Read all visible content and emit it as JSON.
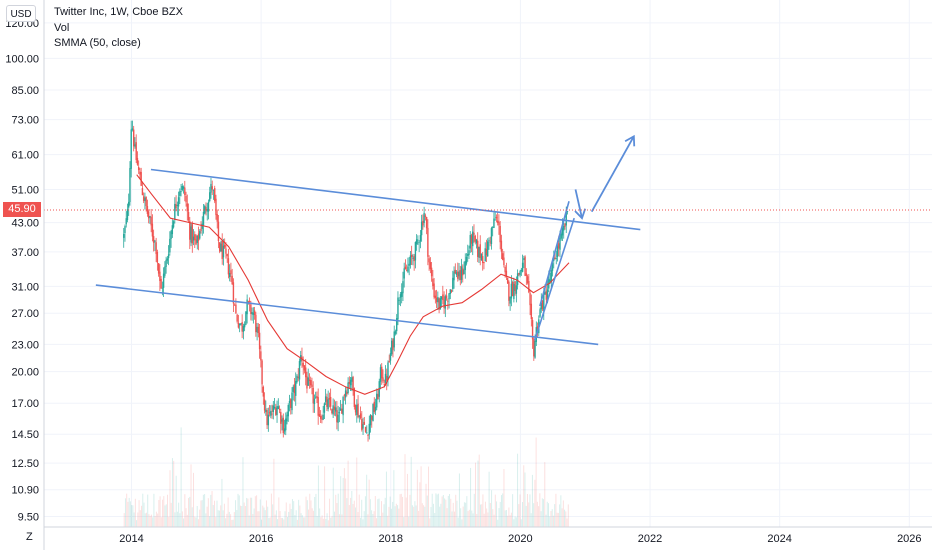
{
  "header": {
    "currency": "USD",
    "legend": {
      "symbol": "Twitter Inc, 1W, Cboe BZX",
      "volume": "Vol",
      "indicator": "SMMA (50, close)"
    },
    "axis_corner": "Z"
  },
  "chart_data": {
    "type": "candlestick",
    "title": "Twitter Inc, 1W, Cboe BZX",
    "y_axis": {
      "scale": "log",
      "side": "left",
      "ticks": [
        "120.00",
        "100.00",
        "85.00",
        "73.00",
        "61.00",
        "51.00",
        "43.00",
        "37.00",
        "31.00",
        "27.00",
        "23.00",
        "20.00",
        "17.00",
        "14.50",
        "12.50",
        "10.90",
        "9.50"
      ],
      "range": [
        9.0,
        135
      ]
    },
    "x_axis": {
      "ticks": [
        "2014",
        "2016",
        "2018",
        "2020",
        "2022",
        "2024",
        "2026"
      ],
      "range": [
        2012.65,
        2026.35
      ]
    },
    "current_price": {
      "label": "45.90",
      "value": 45.9,
      "color": "#ef5350"
    },
    "price_path": [
      [
        2013.88,
        40
      ],
      [
        2013.95,
        46
      ],
      [
        2014.0,
        74
      ],
      [
        2014.05,
        62
      ],
      [
        2014.12,
        55
      ],
      [
        2014.2,
        48
      ],
      [
        2014.3,
        42
      ],
      [
        2014.38,
        38
      ],
      [
        2014.45,
        30
      ],
      [
        2014.55,
        36
      ],
      [
        2014.65,
        45
      ],
      [
        2014.75,
        52
      ],
      [
        2014.82,
        50
      ],
      [
        2014.9,
        41
      ],
      [
        2015.0,
        38
      ],
      [
        2015.1,
        44
      ],
      [
        2015.2,
        50
      ],
      [
        2015.25,
        52
      ],
      [
        2015.35,
        38
      ],
      [
        2015.45,
        36
      ],
      [
        2015.55,
        32
      ],
      [
        2015.6,
        27
      ],
      [
        2015.7,
        25
      ],
      [
        2015.78,
        28
      ],
      [
        2015.88,
        27
      ],
      [
        2015.95,
        24
      ],
      [
        2016.0,
        20
      ],
      [
        2016.08,
        15.5
      ],
      [
        2016.15,
        16
      ],
      [
        2016.25,
        17
      ],
      [
        2016.35,
        15
      ],
      [
        2016.45,
        17
      ],
      [
        2016.55,
        19
      ],
      [
        2016.62,
        22
      ],
      [
        2016.7,
        19
      ],
      [
        2016.8,
        17.5
      ],
      [
        2016.92,
        16
      ],
      [
        2017.0,
        17
      ],
      [
        2017.1,
        16.5
      ],
      [
        2017.2,
        15.5
      ],
      [
        2017.28,
        18
      ],
      [
        2017.38,
        19.5
      ],
      [
        2017.45,
        17
      ],
      [
        2017.55,
        15.5
      ],
      [
        2017.62,
        14.5
      ],
      [
        2017.7,
        16
      ],
      [
        2017.78,
        17
      ],
      [
        2017.85,
        20
      ],
      [
        2017.92,
        19
      ],
      [
        2018.0,
        22
      ],
      [
        2018.05,
        24
      ],
      [
        2018.1,
        28
      ],
      [
        2018.15,
        31
      ],
      [
        2018.22,
        33
      ],
      [
        2018.3,
        35
      ],
      [
        2018.4,
        38
      ],
      [
        2018.48,
        43
      ],
      [
        2018.52,
        46
      ],
      [
        2018.6,
        34
      ],
      [
        2018.67,
        30
      ],
      [
        2018.75,
        28
      ],
      [
        2018.85,
        29
      ],
      [
        2018.93,
        31
      ],
      [
        2019.0,
        34
      ],
      [
        2019.05,
        32
      ],
      [
        2019.15,
        35
      ],
      [
        2019.25,
        40
      ],
      [
        2019.35,
        37
      ],
      [
        2019.45,
        36
      ],
      [
        2019.55,
        41
      ],
      [
        2019.62,
        44
      ],
      [
        2019.68,
        41
      ],
      [
        2019.75,
        33
      ],
      [
        2019.82,
        30
      ],
      [
        2019.9,
        31
      ],
      [
        2019.97,
        33
      ],
      [
        2020.05,
        35
      ],
      [
        2020.12,
        30
      ],
      [
        2020.17,
        25
      ],
      [
        2020.2,
        22
      ],
      [
        2020.25,
        25
      ],
      [
        2020.32,
        28
      ],
      [
        2020.4,
        30
      ],
      [
        2020.48,
        33
      ],
      [
        2020.55,
        37
      ],
      [
        2020.62,
        39
      ],
      [
        2020.68,
        42
      ],
      [
        2020.73,
        46
      ]
    ],
    "smma_50": [
      [
        2014.08,
        55
      ],
      [
        2014.3,
        50
      ],
      [
        2014.6,
        44
      ],
      [
        2014.9,
        43
      ],
      [
        2015.2,
        42
      ],
      [
        2015.5,
        38
      ],
      [
        2015.8,
        32
      ],
      [
        2016.1,
        26
      ],
      [
        2016.4,
        22.5
      ],
      [
        2016.7,
        21
      ],
      [
        2017.0,
        19.5
      ],
      [
        2017.3,
        18.5
      ],
      [
        2017.6,
        17.8
      ],
      [
        2017.9,
        18.5
      ],
      [
        2018.1,
        21
      ],
      [
        2018.3,
        24
      ],
      [
        2018.5,
        26.5
      ],
      [
        2018.8,
        28
      ],
      [
        2019.1,
        28.5
      ],
      [
        2019.4,
        30.5
      ],
      [
        2019.7,
        33
      ],
      [
        2019.95,
        32
      ],
      [
        2020.2,
        30
      ],
      [
        2020.45,
        31.5
      ],
      [
        2020.75,
        35
      ]
    ],
    "volume": {
      "start": 2013.88,
      "end": 2020.75,
      "bars": 360
    },
    "trendlines": [
      {
        "name": "upper-channel",
        "from": [
          2014.3,
          56.5
        ],
        "to": [
          2021.85,
          41.5
        ]
      },
      {
        "name": "lower-channel",
        "from": [
          2013.45,
          31.2
        ],
        "to": [
          2021.2,
          23.0
        ]
      },
      {
        "name": "rising-support",
        "from": [
          2020.22,
          23.5
        ],
        "to": [
          2020.83,
          44
        ]
      },
      {
        "name": "rising-resistance",
        "from": [
          2020.3,
          28
        ],
        "to": [
          2020.75,
          48
        ]
      }
    ],
    "projection_arrows": [
      {
        "name": "down-arrow",
        "from": [
          2020.85,
          51
        ],
        "to": [
          2020.95,
          44
        ]
      },
      {
        "name": "up-arrow",
        "from": [
          2021.1,
          45.5
        ],
        "to": [
          2021.75,
          67
        ]
      }
    ],
    "colors": {
      "up": "#26a69a",
      "down": "#ef5350",
      "smma": "#e53935",
      "trendline": "#5b8dd9",
      "grid": "#f0f3fa",
      "axis_text": "#131722"
    }
  }
}
